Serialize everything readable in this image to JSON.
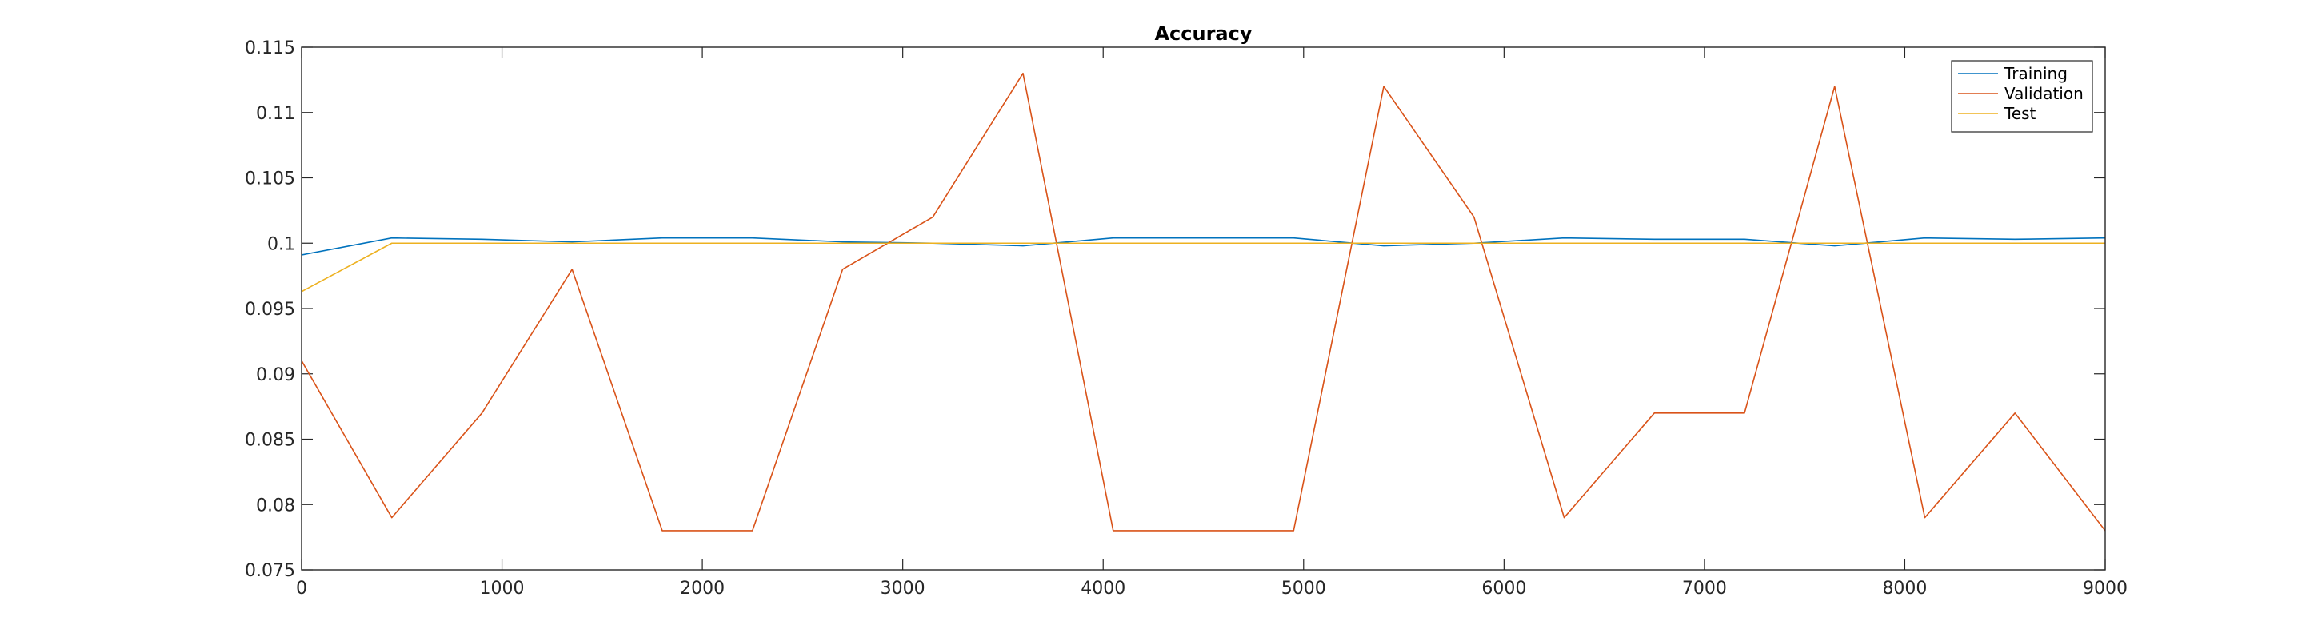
{
  "chart_data": {
    "type": "line",
    "title": "Accuracy",
    "xlabel": "",
    "ylabel": "",
    "xlim": [
      0,
      9000
    ],
    "ylim": [
      0.075,
      0.115
    ],
    "xticks": [
      {
        "value": 0,
        "label": "0"
      },
      {
        "value": 1000,
        "label": "1000"
      },
      {
        "value": 2000,
        "label": "2000"
      },
      {
        "value": 3000,
        "label": "3000"
      },
      {
        "value": 4000,
        "label": "4000"
      },
      {
        "value": 5000,
        "label": "5000"
      },
      {
        "value": 6000,
        "label": "6000"
      },
      {
        "value": 7000,
        "label": "7000"
      },
      {
        "value": 8000,
        "label": "8000"
      },
      {
        "value": 9000,
        "label": "9000"
      }
    ],
    "yticks": [
      {
        "value": 0.075,
        "label": "0.075"
      },
      {
        "value": 0.08,
        "label": "0.08"
      },
      {
        "value": 0.085,
        "label": "0.085"
      },
      {
        "value": 0.09,
        "label": "0.09"
      },
      {
        "value": 0.095,
        "label": "0.095"
      },
      {
        "value": 0.1,
        "label": "0.1"
      },
      {
        "value": 0.105,
        "label": "0.105"
      },
      {
        "value": 0.11,
        "label": "0.11"
      },
      {
        "value": 0.115,
        "label": "0.115"
      }
    ],
    "grid": false,
    "legend_position": "top-right",
    "x": [
      0,
      450,
      900,
      1350,
      1800,
      2250,
      2700,
      3150,
      3600,
      4050,
      4500,
      4950,
      5400,
      5850,
      6300,
      6750,
      7200,
      7650,
      8100,
      8550,
      9000
    ],
    "series": [
      {
        "name": "Training",
        "color": "#0072BD",
        "values": [
          0.0991,
          0.1004,
          0.1003,
          0.1001,
          0.1004,
          0.1004,
          0.1001,
          0.1,
          0.0998,
          0.1004,
          0.1004,
          0.1004,
          0.0998,
          0.1,
          0.1004,
          0.1003,
          0.1003,
          0.0998,
          0.1004,
          0.1003,
          0.1004
        ]
      },
      {
        "name": "Validation",
        "color": "#D95319",
        "values": [
          0.091,
          0.079,
          0.087,
          0.098,
          0.078,
          0.078,
          0.098,
          0.102,
          0.113,
          0.078,
          0.078,
          0.078,
          0.112,
          0.102,
          0.079,
          0.087,
          0.087,
          0.112,
          0.079,
          0.087,
          0.078
        ]
      },
      {
        "name": "Test",
        "color": "#EDB120",
        "values": [
          0.0963,
          0.1,
          0.1,
          0.1,
          0.1,
          0.1,
          0.1,
          0.1,
          0.1,
          0.1,
          0.1,
          0.1,
          0.1,
          0.1,
          0.1,
          0.1,
          0.1,
          0.1,
          0.1,
          0.1,
          0.1
        ]
      }
    ]
  }
}
